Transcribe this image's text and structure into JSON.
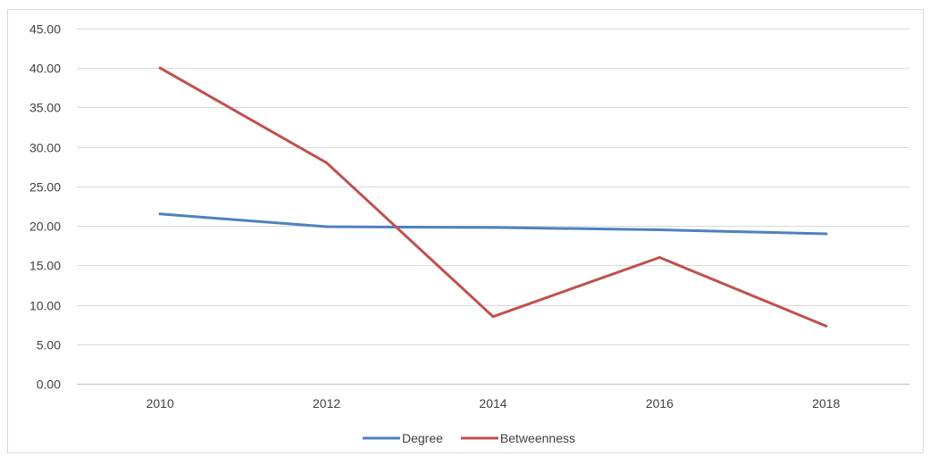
{
  "chart_data": {
    "type": "line",
    "title": "",
    "xlabel": "",
    "ylabel": "",
    "categories": [
      "2010",
      "2012",
      "2014",
      "2016",
      "2018"
    ],
    "series": [
      {
        "name": "Degree",
        "color": "#4f81bd",
        "values": [
          21.5,
          19.9,
          19.8,
          19.5,
          19.0
        ]
      },
      {
        "name": "Betweenness",
        "color": "#c0504d",
        "values": [
          40.0,
          28.0,
          8.5,
          16.0,
          7.3
        ]
      }
    ],
    "ylim": [
      0,
      45
    ],
    "yticks": [
      "0.00",
      "5.00",
      "10.00",
      "15.00",
      "20.00",
      "25.00",
      "30.00",
      "35.00",
      "40.00",
      "45.00"
    ],
    "grid": true,
    "legend": "bottom-center",
    "colors": {
      "gridline": "#d9d9d9",
      "axis": "#bfbfbf",
      "text": "#404040"
    }
  }
}
